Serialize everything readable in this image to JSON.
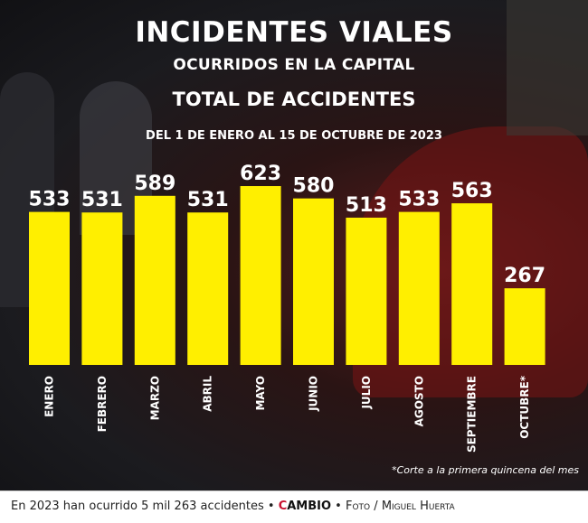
{
  "header": {
    "title": "INCIDENTES VIALES",
    "subtitle": "OCURRIDOS EN LA CAPITAL",
    "chart_title": "TOTAL DE ACCIDENTES",
    "date_range": "DEL 1 DE ENERO AL 15 DE OCTUBRE DE 2023"
  },
  "chart_data": {
    "type": "bar",
    "title": "TOTAL DE ACCIDENTES",
    "subtitle": "DEL 1 DE ENERO AL 15 DE OCTUBRE DE 2023",
    "categories": [
      "ENERO",
      "FEBRERO",
      "MARZO",
      "ABRIL",
      "MAYO",
      "JUNIO",
      "JULIO",
      "AGOSTO",
      "SEPTIEMBRE",
      "OCTUBRE*"
    ],
    "values": [
      533,
      531,
      589,
      531,
      623,
      580,
      513,
      533,
      563,
      267
    ],
    "value_labels": [
      "533",
      "531",
      "589",
      "531",
      "623",
      "580",
      "513",
      "533",
      "563",
      "267"
    ],
    "ylim": [
      0,
      623
    ],
    "bar_color": "#FFEF00",
    "grid": false,
    "legend": "none"
  },
  "footnote": "*Corte a la primera quincena del mes",
  "footer": {
    "caption": "En 2023 han ocurrido 5 mil 263 accidentes",
    "separator": "•",
    "brand_accent": "C",
    "brand_rest": "AMBIO",
    "photo_label": "Foto",
    "photo_sep": "/",
    "photographer": "Miguel Huerta"
  }
}
